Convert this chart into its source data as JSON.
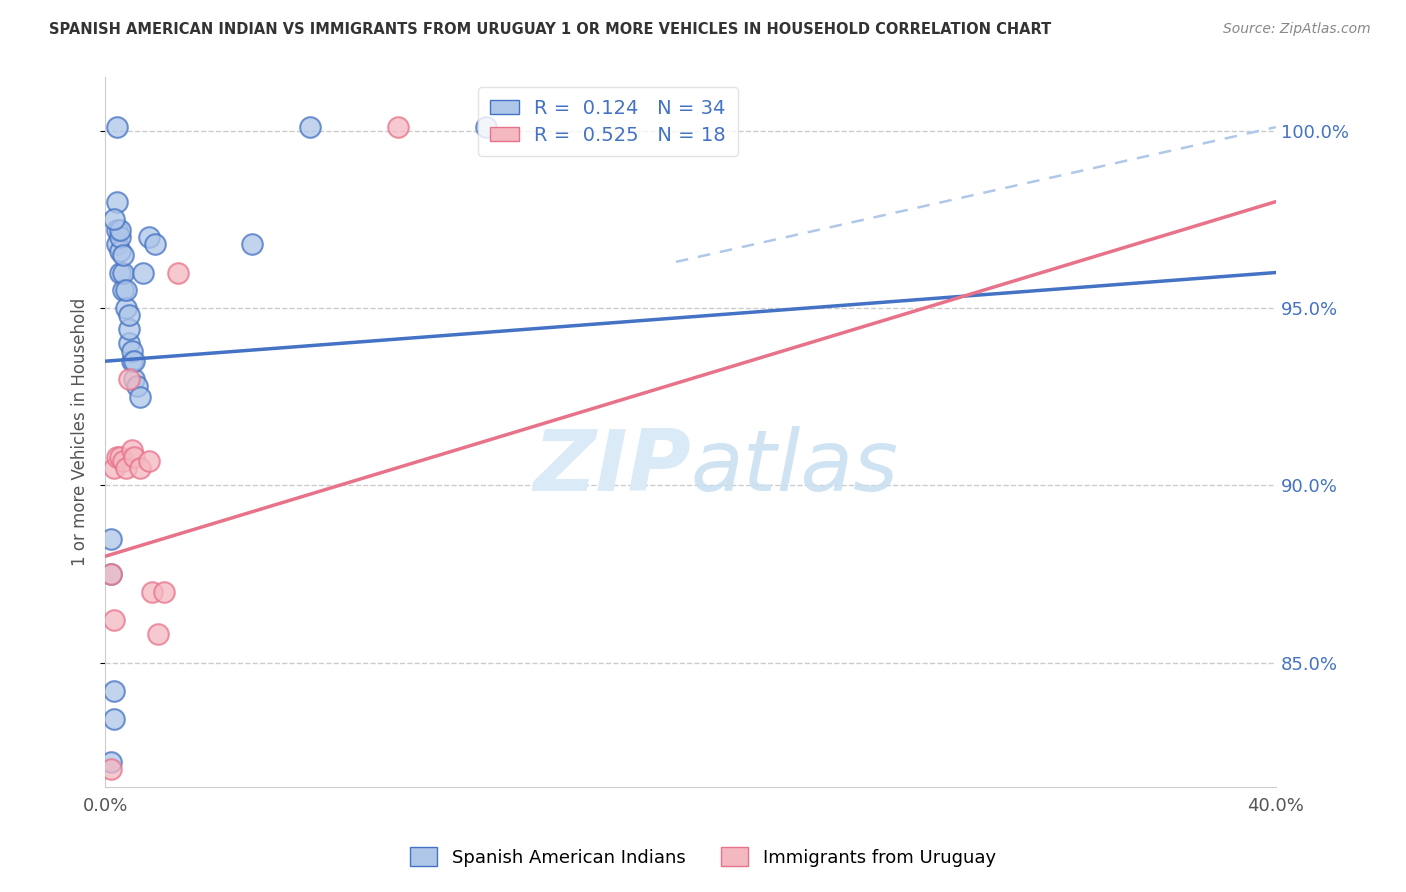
{
  "title": "SPANISH AMERICAN INDIAN VS IMMIGRANTS FROM URUGUAY 1 OR MORE VEHICLES IN HOUSEHOLD CORRELATION CHART",
  "source": "Source: ZipAtlas.com",
  "ylabel": "1 or more Vehicles in Household",
  "blue_label": "Spanish American Indians",
  "pink_label": "Immigrants from Uruguay",
  "blue_R": "0.124",
  "blue_N": "34",
  "pink_R": "0.525",
  "pink_N": "18",
  "blue_color": "#aec6e8",
  "pink_color": "#f4b8c1",
  "blue_line_color": "#4472c4",
  "pink_line_color": "#e8728a",
  "dashed_line_color": "#b0c8e8",
  "text_color": "#4472c4",
  "watermark_color": "#daeaf7",
  "xlim": [
    0.0,
    0.4
  ],
  "ylim": [
    0.815,
    1.015
  ],
  "ytick_values": [
    0.85,
    0.9,
    0.95,
    1.0
  ],
  "ytick_labels": [
    "85.0%",
    "90.0%",
    "95.0%",
    "100.0%"
  ],
  "blue_scatter_x": [
    0.002,
    0.003,
    0.003,
    0.004,
    0.004,
    0.005,
    0.005,
    0.005,
    0.005,
    0.006,
    0.006,
    0.006,
    0.007,
    0.007,
    0.008,
    0.008,
    0.008,
    0.009,
    0.009,
    0.01,
    0.01,
    0.011,
    0.012,
    0.013,
    0.015,
    0.017,
    0.05,
    0.07,
    0.004,
    0.003,
    0.002,
    0.002,
    0.004,
    0.13
  ],
  "blue_scatter_y": [
    0.822,
    0.834,
    0.842,
    0.968,
    0.972,
    0.96,
    0.966,
    0.97,
    0.972,
    0.955,
    0.96,
    0.965,
    0.95,
    0.955,
    0.94,
    0.944,
    0.948,
    0.935,
    0.938,
    0.93,
    0.935,
    0.928,
    0.925,
    0.96,
    0.97,
    0.968,
    0.968,
    1.001,
    0.98,
    0.975,
    0.885,
    0.875,
    1.001,
    1.001
  ],
  "pink_scatter_x": [
    0.002,
    0.003,
    0.004,
    0.005,
    0.006,
    0.007,
    0.008,
    0.009,
    0.01,
    0.012,
    0.015,
    0.016,
    0.018,
    0.02,
    0.025,
    0.1,
    0.002,
    0.003
  ],
  "pink_scatter_y": [
    0.82,
    0.905,
    0.908,
    0.908,
    0.907,
    0.905,
    0.93,
    0.91,
    0.908,
    0.905,
    0.907,
    0.87,
    0.858,
    0.87,
    0.96,
    1.001,
    0.875,
    0.862
  ],
  "blue_line_x0": 0.0,
  "blue_line_x1": 0.4,
  "blue_line_y0": 0.935,
  "blue_line_y1": 0.96,
  "pink_line_x0": 0.0,
  "pink_line_x1": 0.4,
  "pink_line_y0": 0.88,
  "pink_line_y1": 0.98,
  "dash_line_x0": 0.195,
  "dash_line_x1": 0.4,
  "dash_line_y0": 0.963,
  "dash_line_y1": 1.001
}
